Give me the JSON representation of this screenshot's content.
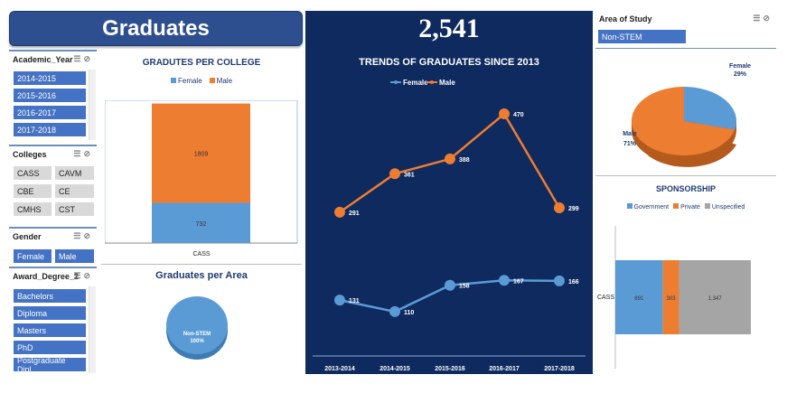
{
  "header": {
    "title": "Graduates",
    "kpi": "2,541"
  },
  "slicers": {
    "academic_year": {
      "title": "Academic_Year",
      "items": [
        "2014-2015",
        "2015-2016",
        "2016-2017",
        "2017-2018"
      ]
    },
    "colleges": {
      "title": "Colleges",
      "items": [
        "CASS",
        "CAVM",
        "CBE",
        "CE",
        "CMHS",
        "CST"
      ]
    },
    "gender": {
      "title": "Gender",
      "items": [
        "Female",
        "Male"
      ]
    },
    "award_degree": {
      "title": "Award_Degree_2",
      "items": [
        "Bachelors",
        "Diploma",
        "Masters",
        "PhD",
        "Postgraduate Dipl..."
      ]
    },
    "area_of_study": {
      "title": "Area of Study",
      "items": [
        "Non-STEM"
      ]
    }
  },
  "colors": {
    "female": "#5b9bd5",
    "male": "#ed7d31",
    "unspecified": "#a5a5a5",
    "navy": "#0e2a5f",
    "accent": "#4472c4"
  },
  "chart_data": [
    {
      "type": "bar",
      "title": "GRADUTES PER COLLEGE",
      "categories": [
        "CASS"
      ],
      "stacked": true,
      "series": [
        {
          "name": "Female",
          "values": [
            732
          ]
        },
        {
          "name": "Male",
          "values": [
            1809
          ]
        }
      ],
      "legend": "top"
    },
    {
      "type": "pie",
      "title": "Graduates per Area",
      "slices": [
        {
          "label": "Non-STEM",
          "value": 100,
          "value_label": "100%"
        }
      ]
    },
    {
      "type": "line",
      "title": "TRENDS OF GRADUATES SINCE 2013",
      "categories": [
        "2013-2014",
        "2014-2015",
        "2015-2016",
        "2016-2017",
        "2017-2018"
      ],
      "series": [
        {
          "name": "Female",
          "values": [
            131,
            110,
            158,
            167,
            166
          ]
        },
        {
          "name": "Male",
          "values": [
            291,
            361,
            388,
            470,
            299
          ]
        }
      ],
      "ylim": [
        0,
        500
      ],
      "legend": "top"
    },
    {
      "type": "pie",
      "title": "",
      "slices": [
        {
          "label": "Female",
          "value": 29,
          "value_label": "29%"
        },
        {
          "label": "Male",
          "value": 71,
          "value_label": "71%"
        }
      ]
    },
    {
      "type": "bar",
      "orientation": "horizontal",
      "stacked": true,
      "title": "SPONSORSHIP",
      "categories": [
        "CASS"
      ],
      "series": [
        {
          "name": "Government",
          "values": [
            891
          ]
        },
        {
          "name": "Private",
          "values": [
            303
          ]
        },
        {
          "name": "Unspecified",
          "values": [
            1347
          ]
        }
      ],
      "value_labels": [
        "891",
        "303",
        "1,347"
      ],
      "legend": "top"
    }
  ]
}
